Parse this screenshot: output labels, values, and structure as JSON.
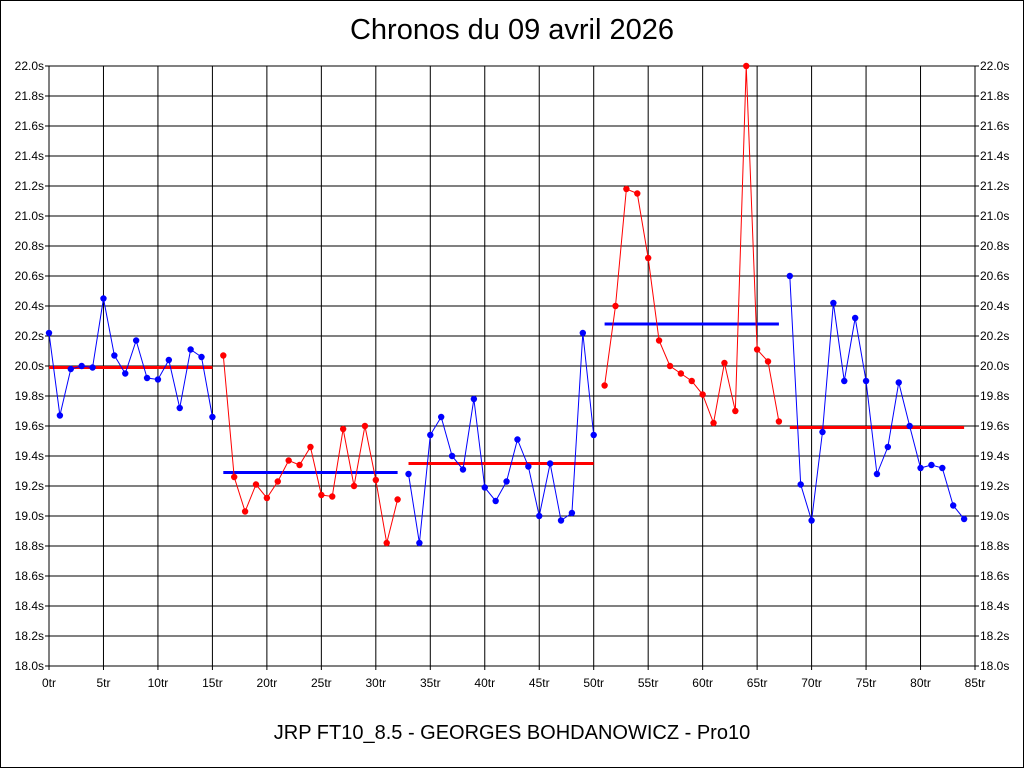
{
  "chart_data": {
    "type": "line",
    "title": "Chronos du 09 avril 2026",
    "caption": "JRP FT10_8.5 - GEORGES BOHDANOWICZ - Pro10",
    "xlim": [
      0,
      85
    ],
    "ylim": [
      18.0,
      22.0
    ],
    "grid": true,
    "x_ticks": [
      0,
      5,
      10,
      15,
      20,
      25,
      30,
      35,
      40,
      45,
      50,
      55,
      60,
      65,
      70,
      75,
      80,
      85
    ],
    "x_tick_labels": [
      "0tr",
      "5tr",
      "10tr",
      "15tr",
      "20tr",
      "25tr",
      "30tr",
      "35tr",
      "40tr",
      "45tr",
      "50tr",
      "55tr",
      "60tr",
      "65tr",
      "70tr",
      "75tr",
      "80tr",
      "85tr"
    ],
    "y_ticks": [
      18.0,
      18.2,
      18.4,
      18.6,
      18.8,
      19.0,
      19.2,
      19.4,
      19.6,
      19.8,
      20.0,
      20.2,
      20.4,
      20.6,
      20.8,
      21.0,
      21.2,
      21.4,
      21.6,
      21.8,
      22.0
    ],
    "y_tick_labels": [
      "18.0s",
      "18.2s",
      "18.4s",
      "18.6s",
      "18.8s",
      "19.0s",
      "19.2s",
      "19.4s",
      "19.6s",
      "19.8s",
      "20.0s",
      "20.2s",
      "20.4s",
      "20.6s",
      "20.8s",
      "21.0s",
      "21.2s",
      "21.4s",
      "21.6s",
      "21.8s",
      "22.0s"
    ],
    "series": [
      {
        "color": "#0000ff",
        "x": [
          0,
          1,
          2,
          3,
          4,
          5,
          6,
          7,
          8,
          9,
          10,
          11,
          12,
          13,
          14,
          15
        ],
        "y": [
          20.22,
          19.67,
          19.98,
          20.0,
          19.99,
          20.45,
          20.07,
          19.95,
          20.17,
          19.92,
          19.91,
          20.04,
          19.72,
          20.11,
          20.06,
          19.66
        ]
      },
      {
        "color": "#ff0000",
        "x": [
          16,
          17,
          18,
          19,
          20,
          21,
          22,
          23,
          24,
          25,
          26,
          27,
          28,
          29,
          30,
          31,
          32
        ],
        "y": [
          20.07,
          19.26,
          19.03,
          19.21,
          19.12,
          19.23,
          19.37,
          19.34,
          19.46,
          19.14,
          19.13,
          19.58,
          19.2,
          19.6,
          19.24,
          18.82,
          19.11
        ]
      },
      {
        "color": "#0000ff",
        "x": [
          33,
          34,
          35,
          36,
          37,
          38,
          39,
          40,
          41,
          42,
          43,
          44,
          45,
          46,
          47,
          48,
          49,
          50
        ],
        "y": [
          19.28,
          18.82,
          19.54,
          19.66,
          19.4,
          19.31,
          19.78,
          19.19,
          19.1,
          19.23,
          19.51,
          19.33,
          19.0,
          19.35,
          18.97,
          19.02,
          20.22,
          19.54
        ]
      },
      {
        "color": "#ff0000",
        "x": [
          51,
          52,
          53,
          54,
          55,
          56,
          57,
          58,
          59,
          60,
          61,
          62,
          63,
          64,
          65,
          66,
          67
        ],
        "y": [
          19.87,
          20.4,
          21.18,
          21.15,
          20.72,
          20.17,
          20.0,
          19.95,
          19.9,
          19.81,
          19.62,
          20.02,
          19.7,
          22.0,
          20.11,
          20.03,
          19.63
        ]
      },
      {
        "color": "#0000ff",
        "x": [
          68,
          69,
          70,
          71,
          72,
          73,
          74,
          75,
          76,
          77,
          78,
          79,
          80,
          81,
          82,
          83,
          84
        ],
        "y": [
          20.6,
          19.21,
          18.97,
          19.56,
          20.42,
          19.9,
          20.32,
          19.9,
          19.28,
          19.46,
          19.89,
          19.6,
          19.32,
          19.34,
          19.32,
          19.07,
          18.98
        ]
      }
    ],
    "averages": [
      {
        "color": "#ff0000",
        "x_start": 0,
        "x_end": 15,
        "value": 19.99
      },
      {
        "color": "#0000ff",
        "x_start": 16,
        "x_end": 32,
        "value": 19.29
      },
      {
        "color": "#ff0000",
        "x_start": 33,
        "x_end": 50,
        "value": 19.35
      },
      {
        "color": "#0000ff",
        "x_start": 51,
        "x_end": 67,
        "value": 20.28
      },
      {
        "color": "#ff0000",
        "x_start": 68,
        "x_end": 84,
        "value": 19.59
      }
    ]
  }
}
